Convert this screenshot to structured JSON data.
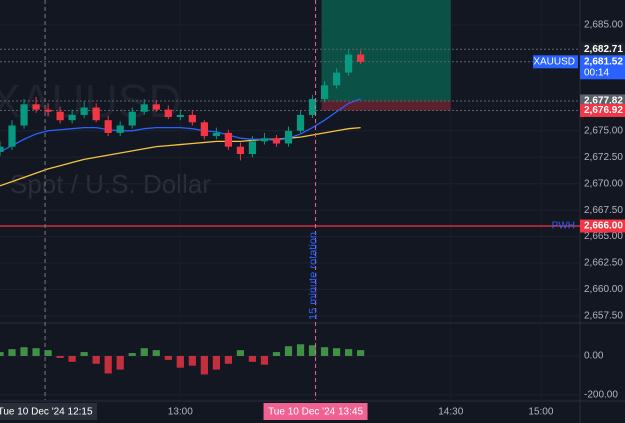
{
  "chart_data": {
    "type": "candlestick",
    "symbol": "XAUUSD",
    "watermark": "Spot / U.S. Dollar",
    "annotation": "15 minute rotation",
    "x": [
      "12:00",
      "12:04",
      "12:08",
      "12:12",
      "12:16",
      "12:20",
      "12:24",
      "12:28",
      "12:32",
      "12:36",
      "12:40",
      "12:44",
      "12:48",
      "12:52",
      "12:56",
      "13:00",
      "13:04",
      "13:08",
      "13:12",
      "13:16",
      "13:20",
      "13:24",
      "13:28",
      "13:32",
      "13:36",
      "13:40",
      "13:44",
      "13:48",
      "13:52",
      "13:56",
      "14:00"
    ],
    "open": [
      2673.0,
      2673.5,
      2675.5,
      2677.5,
      2677.0,
      2676.8,
      2676.0,
      2676.5,
      2677.2,
      2676.0,
      2674.8,
      2675.5,
      2676.8,
      2677.5,
      2677.0,
      2676.3,
      2676.5,
      2675.8,
      2674.5,
      2674.8,
      2673.5,
      2672.8,
      2674.0,
      2674.3,
      2673.8,
      2675.0,
      2676.5,
      2678.0,
      2679.3,
      2680.5,
      2682.2
    ],
    "high": [
      2674.0,
      2676.0,
      2678.0,
      2678.2,
      2677.6,
      2677.3,
      2677.0,
      2677.8,
      2677.6,
      2676.4,
      2675.9,
      2677.2,
      2678.0,
      2677.9,
      2677.4,
      2677.0,
      2676.9,
      2676.0,
      2675.3,
      2675.1,
      2673.9,
      2674.5,
      2674.8,
      2674.6,
      2675.4,
      2676.9,
      2678.4,
      2679.7,
      2680.9,
      2682.7,
      2682.6
    ],
    "low": [
      2672.6,
      2673.2,
      2675.2,
      2676.7,
      2676.4,
      2675.7,
      2675.7,
      2676.2,
      2675.8,
      2674.5,
      2674.5,
      2675.2,
      2676.5,
      2676.8,
      2676.1,
      2676.0,
      2675.5,
      2674.2,
      2674.2,
      2673.2,
      2672.2,
      2672.5,
      2673.7,
      2673.5,
      2673.5,
      2674.8,
      2676.2,
      2677.7,
      2679.0,
      2680.2,
      2681.3
    ],
    "close": [
      2673.5,
      2675.5,
      2677.5,
      2677.0,
      2676.8,
      2676.0,
      2676.5,
      2677.2,
      2676.0,
      2674.8,
      2675.5,
      2676.8,
      2677.5,
      2677.0,
      2676.3,
      2676.5,
      2675.8,
      2674.5,
      2674.8,
      2673.5,
      2672.8,
      2674.0,
      2674.3,
      2673.8,
      2675.0,
      2676.5,
      2678.0,
      2679.3,
      2680.5,
      2682.2,
      2681.52
    ],
    "overlays": [
      {
        "color": "#f5c242",
        "values": [
          2669.8,
          2670.2,
          2670.6,
          2671.0,
          2671.4,
          2671.7,
          2672.0,
          2672.3,
          2672.5,
          2672.7,
          2672.9,
          2673.1,
          2673.3,
          2673.5,
          2673.6,
          2673.7,
          2673.8,
          2673.9,
          2674.0,
          2674.0,
          2674.0,
          2674.1,
          2674.2,
          2674.2,
          2674.3,
          2674.4,
          2674.6,
          2674.8,
          2675.0,
          2675.2,
          2675.3
        ]
      },
      {
        "color": "#2962ff",
        "values": [
          2673.0,
          2673.6,
          2674.2,
          2674.7,
          2675.0,
          2675.1,
          2675.2,
          2675.3,
          2675.3,
          2675.1,
          2675.0,
          2675.0,
          2675.2,
          2675.3,
          2675.3,
          2675.3,
          2675.2,
          2675.0,
          2674.9,
          2674.6,
          2674.3,
          2674.2,
          2674.2,
          2674.1,
          2674.3,
          2674.7,
          2675.3,
          2676.0,
          2676.8,
          2677.6,
          2678.0
        ]
      }
    ],
    "osc": [
      20,
      35,
      45,
      40,
      30,
      -10,
      -30,
      20,
      -40,
      -90,
      -70,
      15,
      40,
      30,
      -20,
      -60,
      -50,
      -95,
      -70,
      -40,
      30,
      -30,
      -45,
      20,
      50,
      60,
      55,
      45,
      40,
      35,
      30
    ],
    "ylim": [
      2656.93,
      2687.36
    ],
    "yticks": [
      {
        "value": 2685,
        "label": "2,685.00"
      },
      {
        "value": 2675,
        "label": "2,675.00"
      },
      {
        "value": 2672.5,
        "label": "2,672.50"
      },
      {
        "value": 2670,
        "label": "2,670.00"
      },
      {
        "value": 2667.5,
        "label": "2,667.50"
      },
      {
        "value": 2665,
        "label": "2,665.00"
      },
      {
        "value": 2662.5,
        "label": "2,662.50"
      },
      {
        "value": 2660,
        "label": "2,660.00"
      },
      {
        "value": 2657.5,
        "label": "2,657.50"
      }
    ],
    "osc_ylim": [
      -226,
      159
    ],
    "osc_ticks": [
      {
        "value": 0,
        "label": "0.00"
      },
      {
        "value": -200,
        "label": "-200.00"
      }
    ],
    "xlim": [
      "12:00",
      "15:13"
    ],
    "xticks": [
      "13:00",
      "14:30",
      "15:00"
    ],
    "crosshairs": [
      {
        "x": "12:15",
        "label": "Tue 10 Dec '24   12:15"
      },
      {
        "x": "13:45",
        "label": "Tue 10 Dec '24   13:45"
      }
    ],
    "price_tags": [
      {
        "value": 2682.71,
        "label": "2,682.71",
        "color": "#1e222d"
      },
      {
        "value": 2681.52,
        "label": "2,681.52",
        "color": "#2962ff",
        "name": "XAUUSD",
        "sub": "00:14"
      },
      {
        "value": 2677.82,
        "label": "2,677.82",
        "color": "#5d606b"
      },
      {
        "value": 2676.92,
        "label": "2,676.92",
        "color": "#f23645"
      },
      {
        "value": 2666,
        "label": "2,666.00",
        "color": "#f23645",
        "name": "PWH"
      }
    ],
    "position": {
      "start": "13:47",
      "end": "14:30",
      "entry": 2677.82,
      "stop": 2676.92
    }
  }
}
